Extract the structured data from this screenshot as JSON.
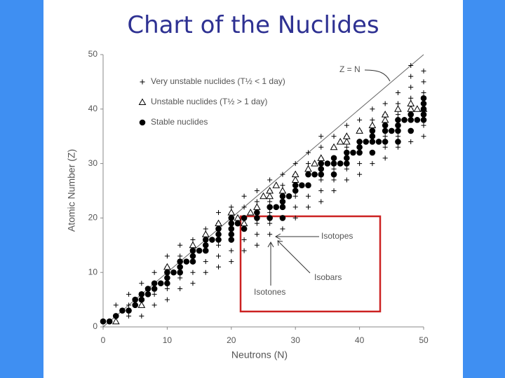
{
  "chart_data": {
    "type": "scatter",
    "title": "Chart of the Nuclides",
    "x_label": "Neutrons (N)",
    "y_label": "Atomic Number (Z)",
    "xlim": [
      0,
      50
    ],
    "ylim": [
      0,
      50
    ],
    "xticks": [
      0,
      10,
      20,
      30,
      40,
      50
    ],
    "yticks": [
      0,
      10,
      20,
      30,
      40,
      50
    ],
    "legend": "upper left",
    "reference_line": {
      "label": "Z = N",
      "x": [
        0,
        50
      ],
      "y": [
        0,
        50
      ],
      "color": "#666666"
    },
    "annotations": [
      "Isotopes",
      "Isobars",
      "Isotones"
    ],
    "series": [
      {
        "name": "Very unstable nuclides (T½ < 1 day)",
        "marker": "plus",
        "color": "#000000",
        "x": [
          2,
          2,
          4,
          4,
          4,
          6,
          6,
          6,
          6,
          8,
          8,
          8,
          8,
          10,
          10,
          10,
          10,
          10,
          12,
          12,
          12,
          12,
          12,
          14,
          14,
          14,
          14,
          14,
          16,
          16,
          16,
          16,
          16,
          18,
          18,
          18,
          18,
          18,
          18,
          20,
          20,
          20,
          20,
          20,
          20,
          22,
          22,
          22,
          22,
          22,
          22,
          24,
          24,
          24,
          24,
          24,
          24,
          26,
          26,
          26,
          26,
          26,
          26,
          28,
          28,
          28,
          28,
          28,
          28,
          30,
          30,
          30,
          30,
          30,
          30,
          32,
          32,
          32,
          32,
          32,
          32,
          34,
          34,
          34,
          34,
          34,
          34,
          34,
          36,
          36,
          36,
          36,
          36,
          36,
          38,
          38,
          38,
          38,
          38,
          38,
          40,
          40,
          40,
          40,
          40,
          40,
          42,
          42,
          42,
          42,
          42,
          42,
          44,
          44,
          44,
          44,
          44,
          44,
          46,
          46,
          46,
          46,
          46,
          46,
          48,
          48,
          48,
          48,
          48,
          48,
          48,
          48,
          50,
          50,
          50,
          50,
          50,
          50,
          50
        ],
        "values": [
          2,
          4,
          2,
          4,
          6,
          2,
          4,
          6,
          8,
          4,
          6,
          8,
          10,
          5,
          7,
          9,
          11,
          13,
          7,
          9,
          11,
          13,
          15,
          8,
          10,
          12,
          14,
          16,
          10,
          12,
          14,
          16,
          18,
          11,
          13,
          15,
          17,
          19,
          21,
          12,
          14,
          16,
          18,
          20,
          22,
          14,
          16,
          18,
          20,
          22,
          24,
          15,
          17,
          19,
          21,
          23,
          25,
          17,
          19,
          21,
          23,
          25,
          27,
          18,
          20,
          22,
          24,
          26,
          28,
          20,
          22,
          24,
          26,
          28,
          30,
          22,
          24,
          26,
          28,
          30,
          32,
          23,
          25,
          27,
          29,
          31,
          33,
          35,
          25,
          27,
          29,
          31,
          33,
          35,
          27,
          29,
          31,
          33,
          35,
          37,
          28,
          30,
          32,
          34,
          36,
          38,
          30,
          32,
          34,
          36,
          38,
          40,
          31,
          33,
          35,
          37,
          39,
          41,
          33,
          35,
          37,
          39,
          41,
          43,
          34,
          36,
          38,
          40,
          42,
          44,
          46,
          48,
          35,
          37,
          39,
          41,
          43,
          45,
          47
        ]
      },
      {
        "name": "Unstable nuclides (T½ > 1 day)",
        "marker": "triangle",
        "color": "#000000",
        "x": [
          2,
          6,
          10,
          14,
          16,
          18,
          20,
          21,
          22,
          23,
          24,
          25,
          26,
          26,
          27,
          28,
          30,
          30,
          32,
          33,
          34,
          36,
          37,
          38,
          38,
          40,
          42,
          44,
          44,
          46,
          48,
          48,
          49,
          50
        ],
        "values": [
          1,
          4,
          11,
          15,
          17,
          19,
          21,
          20,
          19,
          21,
          22,
          24,
          24,
          25,
          26,
          25,
          27,
          28,
          29,
          30,
          31,
          33,
          34,
          34,
          35,
          36,
          37,
          38,
          39,
          40,
          40,
          41,
          40,
          40
        ]
      },
      {
        "name": "Stable nuclides",
        "marker": "circle",
        "color": "#000000",
        "x": [
          0,
          1,
          2,
          3,
          4,
          5,
          5,
          6,
          6,
          7,
          7,
          8,
          8,
          9,
          10,
          10,
          10,
          11,
          12,
          12,
          12,
          13,
          14,
          14,
          14,
          15,
          16,
          16,
          16,
          17,
          18,
          18,
          18,
          20,
          20,
          20,
          20,
          20,
          21,
          22,
          22,
          24,
          24,
          26,
          26,
          27,
          28,
          28,
          28,
          28,
          29,
          30,
          30,
          31,
          32,
          32,
          33,
          34,
          34,
          34,
          35,
          36,
          36,
          36,
          37,
          38,
          38,
          38,
          39,
          40,
          40,
          40,
          41,
          42,
          42,
          42,
          42,
          43,
          44,
          44,
          44,
          45,
          46,
          46,
          46,
          46,
          47,
          48,
          48,
          48,
          49,
          50,
          50,
          50,
          50,
          50
        ],
        "values": [
          1,
          1,
          2,
          3,
          3,
          4,
          5,
          5,
          6,
          6,
          7,
          7,
          8,
          8,
          8,
          9,
          10,
          10,
          10,
          11,
          12,
          12,
          12,
          13,
          14,
          14,
          14,
          15,
          16,
          16,
          16,
          17,
          18,
          16,
          17,
          18,
          19,
          20,
          19,
          18,
          20,
          20,
          21,
          20,
          22,
          22,
          20,
          22,
          23,
          24,
          24,
          25,
          26,
          26,
          26,
          28,
          28,
          28,
          29,
          30,
          30,
          28,
          30,
          31,
          30,
          30,
          31,
          32,
          32,
          32,
          33,
          34,
          34,
          32,
          34,
          35,
          36,
          34,
          34,
          36,
          37,
          36,
          34,
          36,
          37,
          38,
          38,
          36,
          38,
          39,
          38,
          38,
          39,
          40,
          41,
          42
        ]
      }
    ]
  }
}
